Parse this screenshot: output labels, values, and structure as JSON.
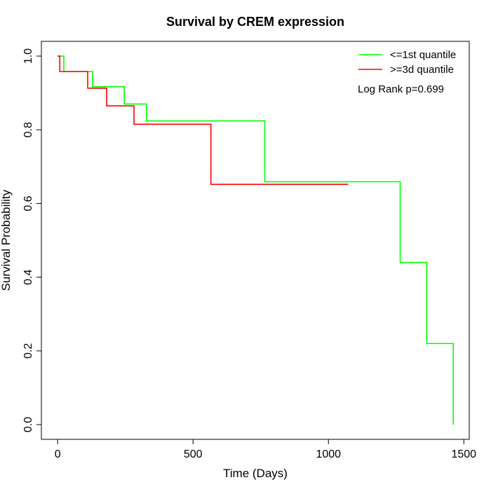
{
  "chart_data": {
    "type": "line",
    "title": "Survival by CREM expression",
    "xlabel": "Time (Days)",
    "ylabel": "Survival Probability",
    "xlim": [
      -60,
      1520
    ],
    "ylim": [
      -0.04,
      1.04
    ],
    "xticks": [
      0,
      500,
      1000,
      1500
    ],
    "yticks": [
      0.0,
      0.2,
      0.4,
      0.6,
      0.8,
      1.0
    ],
    "ytick_labels": [
      "0.0",
      "0.2",
      "0.4",
      "0.6",
      "0.8",
      "1.0"
    ],
    "grid": false,
    "legend_position": "top-right",
    "annotation": "Log Rank p=0.699",
    "series": [
      {
        "name": "<=1st quantile",
        "color": "#00ff00",
        "step": true,
        "x": [
          0,
          23,
          129,
          246,
          328,
          765,
          1265,
          1363,
          1461,
          1461
        ],
        "y": [
          1.0,
          0.958,
          0.917,
          0.87,
          0.824,
          0.659,
          0.44,
          0.22,
          0.22,
          0.0
        ]
      },
      {
        "name": ">=3d quantile",
        "color": "#ff0000",
        "step": true,
        "x": [
          0,
          8,
          111,
          181,
          282,
          566,
          1073
        ],
        "y": [
          1.0,
          0.958,
          0.913,
          0.865,
          0.815,
          0.652,
          0.652
        ]
      }
    ]
  }
}
